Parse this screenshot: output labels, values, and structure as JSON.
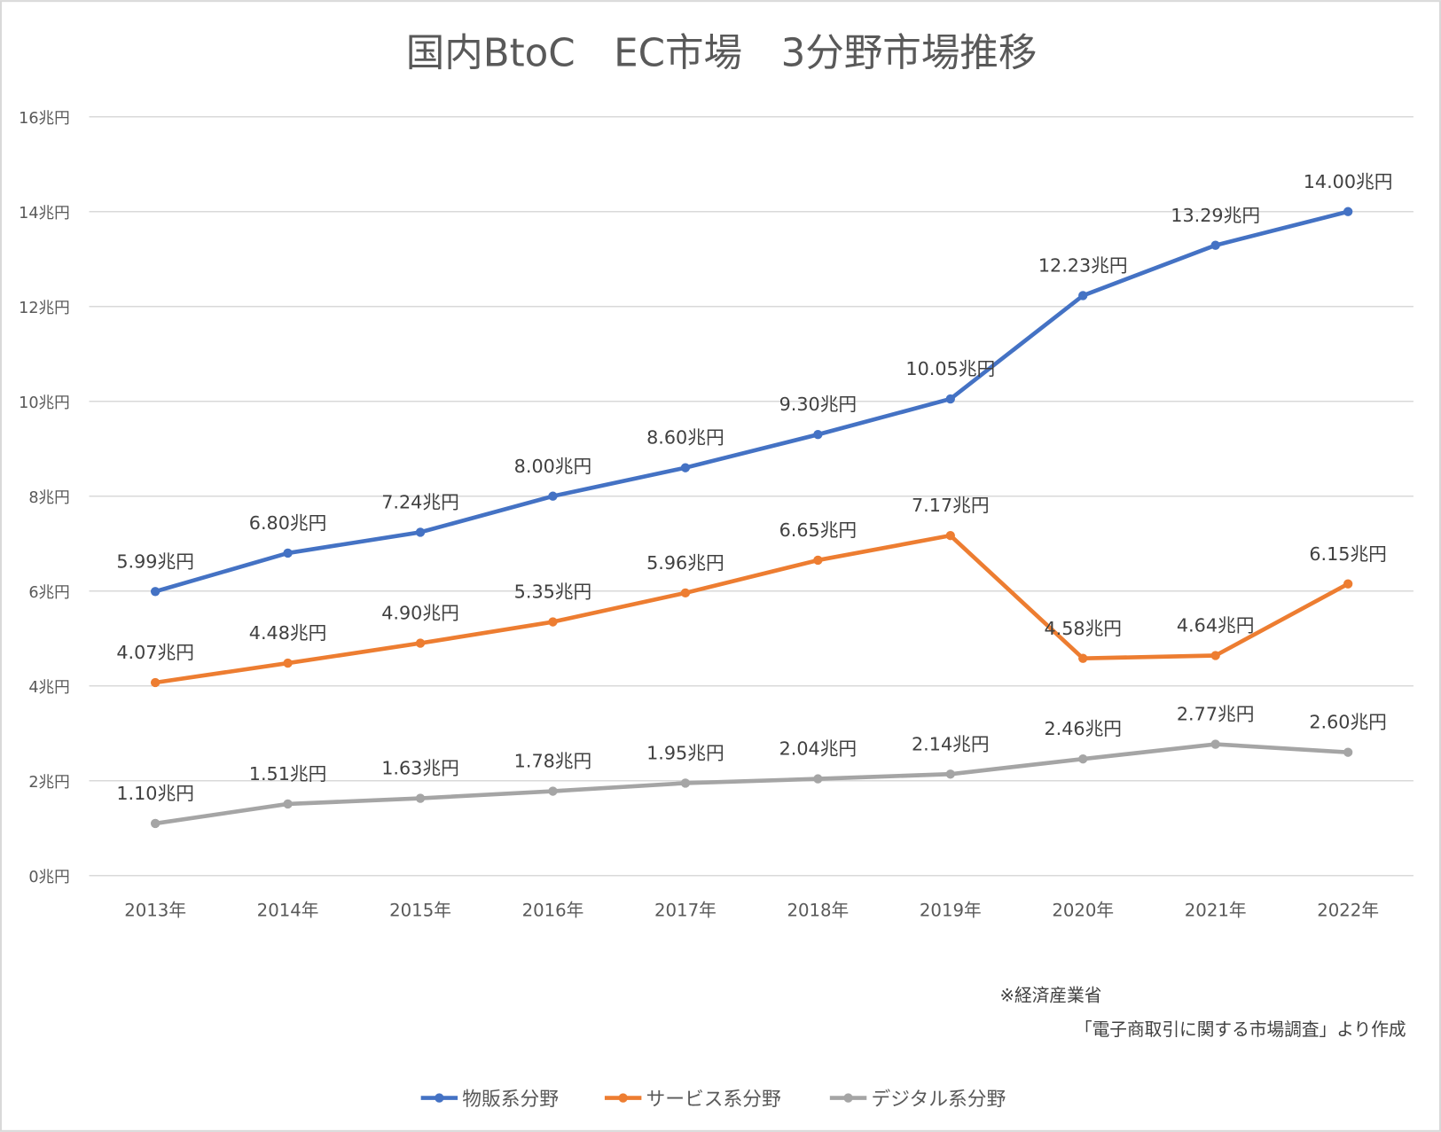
{
  "chart_data": {
    "type": "line",
    "title": "国内BtoC　EC市場　3分野市場推移",
    "categories": [
      "2013年",
      "2014年",
      "2015年",
      "2016年",
      "2017年",
      "2018年",
      "2019年",
      "2020年",
      "2021年",
      "2022年"
    ],
    "y_ticks": [
      "0兆円",
      "2兆円",
      "4兆円",
      "6兆円",
      "8兆円",
      "10兆円",
      "12兆円",
      "14兆円",
      "16兆円"
    ],
    "ylim": [
      0,
      16
    ],
    "unit": "兆円",
    "grid": true,
    "legend_position": "bottom",
    "series": [
      {
        "name": "物販系分野",
        "color": "#4472C4",
        "values": [
          5.99,
          6.8,
          7.24,
          8.0,
          8.6,
          9.3,
          10.05,
          12.23,
          13.29,
          14.0
        ]
      },
      {
        "name": "サービス系分野",
        "color": "#ED7D31",
        "values": [
          4.07,
          4.48,
          4.9,
          5.35,
          5.96,
          6.65,
          7.17,
          4.58,
          4.64,
          6.15
        ]
      },
      {
        "name": "デジタル系分野",
        "color": "#A5A5A5",
        "values": [
          1.1,
          1.51,
          1.63,
          1.78,
          1.95,
          2.04,
          2.14,
          2.46,
          2.77,
          2.6
        ]
      }
    ],
    "annotations": [
      "※経済産業省",
      "「電子商取引に関する市場調査」より作成"
    ]
  }
}
